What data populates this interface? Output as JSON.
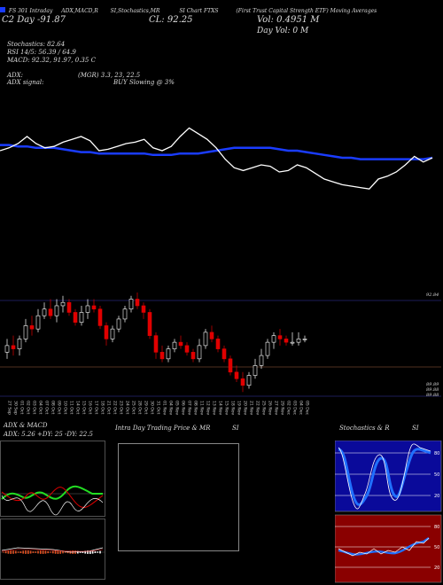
{
  "header": {
    "line1": [
      "FS 301 Intraday",
      "ADX,MACD,R",
      "SI,Stochastics,MR",
      "SI Chart",
      "FTXS",
      "(First Trust Capital Strength ETF) Moving Averages"
    ],
    "line2_left": "C2 Day -91.87",
    "line2_close": "CL: 92.25",
    "vol_line": "Vol: 0.4951 M",
    "day_vol": "Day Vol: 0   M",
    "stoch": "Stochastics: 82.64",
    "rsi": "RSI 14/5: 56.39 / 64.9",
    "macd": "MACD: 92.32, 91.97, 0.35 C",
    "adx": "ADX:",
    "adx_vals": "(MGR) 3.3,  23,  22.5",
    "adx_signal": "ADX  signal:",
    "adx_signal_text": "BUY Slowing @ 3%",
    "colors": {
      "ma": "#1a3cff",
      "price_line": "#ffffff",
      "up": "#ffffff",
      "down": "#e00000",
      "osc_green": "#22dd22"
    }
  },
  "price_axis": {
    "top_label": "92.84",
    "low_label1": "89.89",
    "low_label2": "89.88",
    "low_label3": "89.88"
  },
  "dates": [
    "27 Sep",
    "30 Sep",
    "01 Oct",
    "02 Oct",
    "03 Oct",
    "04 Oct",
    "07 Oct",
    "08 Oct",
    "09 Oct",
    "10 Oct",
    "11 Oct",
    "14 Oct",
    "15 Oct",
    "16 Oct",
    "17 Oct",
    "18 Oct",
    "21 Oct",
    "22 Oct",
    "23 Oct",
    "24 Oct",
    "25 Oct",
    "28 Oct",
    "29 Oct",
    "30 Oct",
    "31 Oct",
    "01 Nov",
    "04 Nov",
    "05 Nov",
    "06 Nov",
    "07 Nov",
    "08 Nov",
    "11 Nov",
    "12 Nov",
    "13 Nov",
    "14 Nov",
    "15 Nov",
    "18 Nov",
    "19 Nov",
    "20 Nov",
    "21 Nov",
    "22 Nov",
    "25 Nov",
    "26 Nov",
    "27 Nov",
    "29 Nov",
    "02 Dec",
    "03 Dec",
    "04 Dec",
    "05 Dec"
  ],
  "bottom": {
    "p1_title_left": "ADX  & MACD",
    "p1_vals": "ADX: 5.26  +DY: 25  -DY: 22.5",
    "p2_title": "Intra  Day Trading Price  & MR",
    "p2_title_right": "SI",
    "p3_title": "Stochastics & R",
    "p3_title_right": "SI",
    "stoch_ticks": [
      "80",
      "50",
      "20"
    ],
    "rsi_ticks": [
      "80",
      "50",
      "20"
    ]
  },
  "chart_data": {
    "type": "candlestick",
    "categories": [
      "27 Sep",
      "30 Sep",
      "01 Oct",
      "02 Oct",
      "03 Oct",
      "04 Oct",
      "07 Oct",
      "08 Oct",
      "09 Oct",
      "10 Oct",
      "11 Oct",
      "14 Oct",
      "15 Oct",
      "16 Oct",
      "17 Oct",
      "18 Oct",
      "21 Oct",
      "22 Oct",
      "23 Oct",
      "24 Oct",
      "25 Oct",
      "28 Oct",
      "29 Oct",
      "30 Oct",
      "31 Oct",
      "01 Nov",
      "04 Nov",
      "05 Nov",
      "06 Nov",
      "07 Nov",
      "08 Nov",
      "11 Nov",
      "12 Nov",
      "13 Nov",
      "14 Nov",
      "15 Nov",
      "18 Nov",
      "19 Nov",
      "20 Nov",
      "21 Nov",
      "22 Nov",
      "25 Nov",
      "26 Nov",
      "27 Nov",
      "29 Nov",
      "02 Dec",
      "03 Dec",
      "04 Dec",
      "05 Dec"
    ],
    "series": [
      {
        "open": [
          91.2,
          91.4,
          91.3,
          91.6,
          92.0,
          91.9,
          92.3,
          92.5,
          92.3,
          92.6,
          92.7,
          92.4,
          92.1,
          92.4,
          92.6,
          92.5,
          92.0,
          91.6,
          91.9,
          92.2,
          92.5,
          92.8,
          92.6,
          92.4,
          91.7,
          91.2,
          91.0,
          91.3,
          91.5,
          91.4,
          91.2,
          91.0,
          91.4,
          91.8,
          91.6,
          91.3,
          91.0,
          90.6,
          90.4,
          90.2,
          90.5,
          90.8,
          91.1,
          91.5,
          91.7,
          91.6,
          91.5,
          91.5,
          91.6
        ],
        "high": [
          91.6,
          91.7,
          91.7,
          92.2,
          92.3,
          92.5,
          92.7,
          92.8,
          92.8,
          92.9,
          92.8,
          92.5,
          92.6,
          92.8,
          92.8,
          92.6,
          92.1,
          92.0,
          92.3,
          92.6,
          92.9,
          93.0,
          92.7,
          92.5,
          91.8,
          91.4,
          91.4,
          91.6,
          91.7,
          91.5,
          91.3,
          91.6,
          91.9,
          92.0,
          91.7,
          91.4,
          91.1,
          90.8,
          90.6,
          90.6,
          91.0,
          91.3,
          91.6,
          91.8,
          91.9,
          91.7,
          91.8,
          91.8,
          91.7
        ],
        "low": [
          91.0,
          91.1,
          91.1,
          91.5,
          91.7,
          91.8,
          92.2,
          92.2,
          92.1,
          92.4,
          92.3,
          92.0,
          92.0,
          92.2,
          92.4,
          91.9,
          91.4,
          91.5,
          91.8,
          92.1,
          92.4,
          92.5,
          92.2,
          91.6,
          91.0,
          90.9,
          90.9,
          91.2,
          91.3,
          91.1,
          90.9,
          90.9,
          91.3,
          91.5,
          91.2,
          90.9,
          90.5,
          90.3,
          90.0,
          90.1,
          90.4,
          90.7,
          91.0,
          91.3,
          91.4,
          91.4,
          91.4,
          91.4,
          91.5
        ],
        "close": [
          91.4,
          91.3,
          91.6,
          92.0,
          91.9,
          92.3,
          92.5,
          92.3,
          92.6,
          92.7,
          92.4,
          92.1,
          92.4,
          92.6,
          92.5,
          92.0,
          91.6,
          91.9,
          92.2,
          92.5,
          92.8,
          92.6,
          92.4,
          91.7,
          91.2,
          91.0,
          91.3,
          91.5,
          91.4,
          91.2,
          91.0,
          91.4,
          91.8,
          91.6,
          91.3,
          91.0,
          90.6,
          90.4,
          90.2,
          90.5,
          90.8,
          91.1,
          91.5,
          91.7,
          91.6,
          91.5,
          91.5,
          91.6,
          91.6
        ]
      }
    ]
  },
  "overlay_lines": {
    "price": [
      50,
      52,
      55,
      60,
      55,
      52,
      53,
      56,
      58,
      60,
      57,
      50,
      51,
      53,
      55,
      56,
      58,
      52,
      50,
      53,
      60,
      66,
      62,
      58,
      52,
      44,
      38,
      36,
      38,
      40,
      39,
      35,
      36,
      40,
      38,
      34,
      30,
      28,
      26,
      25,
      24,
      23,
      30,
      32,
      35,
      40,
      46,
      42,
      45
    ],
    "ma": [
      54,
      54,
      53,
      53,
      52,
      52,
      52,
      51,
      50,
      49,
      49,
      48,
      48,
      48,
      48,
      48,
      48,
      47,
      47,
      47,
      48,
      48,
      48,
      49,
      50,
      51,
      52,
      52,
      52,
      52,
      52,
      51,
      50,
      50,
      49,
      48,
      47,
      46,
      45,
      45,
      44,
      44,
      44,
      44,
      44,
      44,
      44,
      44,
      45
    ]
  }
}
